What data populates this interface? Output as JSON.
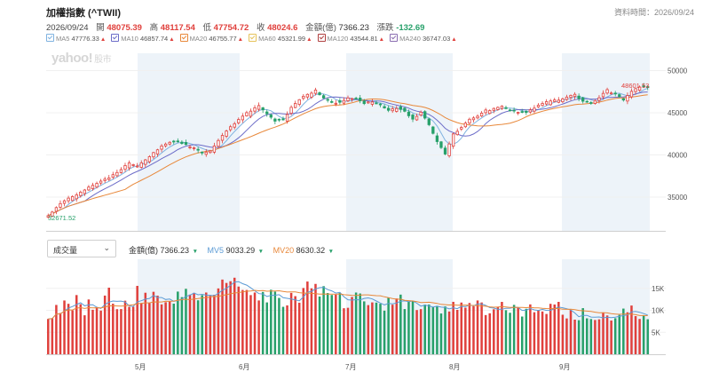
{
  "header": {
    "title": "加權指數 (^TWII)",
    "data_time": "資料時間：2026/09/24"
  },
  "quote": {
    "date": "2026/09/24",
    "open_label": "開",
    "open": "48075.39",
    "high_label": "高",
    "high": "48117.54",
    "low_label": "低",
    "low": "47754.72",
    "close_label": "收",
    "close": "48024.6",
    "amount_label": "金額(億)",
    "amount": "7366.23",
    "change_label": "漲跌",
    "change": "-132.69"
  },
  "ma_legend": [
    {
      "label": "MA5",
      "value": "47776.33",
      "color": "#7fb2e0",
      "dir": "up"
    },
    {
      "label": "MA10",
      "value": "46857.74",
      "color": "#6c6cc8",
      "dir": "up"
    },
    {
      "label": "MA20",
      "value": "46755.77",
      "color": "#e8883a",
      "dir": "up"
    },
    {
      "label": "MA60",
      "value": "45321.99",
      "color": "#e6c35a",
      "dir": "up"
    },
    {
      "label": "MA120",
      "value": "43544.81",
      "color": "#b04040",
      "dir": "up"
    },
    {
      "label": "MA240",
      "value": "36747.03",
      "color": "#8a6cb0",
      "dir": "up"
    }
  ],
  "watermark": {
    "brand": "yahoo!",
    "suffix": "股市"
  },
  "volume_panel": {
    "selector_label": "成交量",
    "amount_label": "金額(億)",
    "amount": "7366.23",
    "amount_dir": "down",
    "mv5_label": "MV5",
    "mv5": "9033.29",
    "mv5_dir": "down",
    "mv20_label": "MV20",
    "mv20": "8630.32",
    "mv20_dir": "down"
  },
  "colors": {
    "up": "#e0403c",
    "down": "#27a06a",
    "shade": "#edf3f9"
  },
  "chart_data": {
    "type": "candlestick",
    "x_ticks": [
      "5月",
      "6月",
      "7月",
      "8月",
      "9月"
    ],
    "y_ticks": [
      35000,
      40000,
      45000,
      50000
    ],
    "ylim": [
      31000,
      51000
    ],
    "max_label": "48601.53",
    "min_label": "32671.52",
    "close_path": [
      [
        0,
        32800
      ],
      [
        3,
        34200
      ],
      [
        6,
        35200
      ],
      [
        9,
        36000
      ],
      [
        12,
        36800
      ],
      [
        15,
        37300
      ],
      [
        18,
        38300
      ],
      [
        20,
        39200
      ],
      [
        22,
        38900
      ],
      [
        24,
        39600
      ],
      [
        26,
        40400
      ],
      [
        28,
        41100
      ],
      [
        30,
        41500
      ],
      [
        32,
        41600
      ],
      [
        34,
        41200
      ],
      [
        36,
        41000
      ],
      [
        38,
        40500
      ],
      [
        40,
        40600
      ],
      [
        42,
        41800
      ],
      [
        44,
        42900
      ],
      [
        46,
        43700
      ],
      [
        48,
        44600
      ],
      [
        50,
        45400
      ],
      [
        52,
        46000
      ],
      [
        54,
        45100
      ],
      [
        56,
        44200
      ],
      [
        58,
        44100
      ],
      [
        60,
        45600
      ],
      [
        62,
        46600
      ],
      [
        64,
        47200
      ],
      [
        66,
        47800
      ],
      [
        68,
        46900
      ],
      [
        70,
        46500
      ],
      [
        72,
        46200
      ],
      [
        74,
        46800
      ],
      [
        76,
        46700
      ],
      [
        78,
        46100
      ],
      [
        80,
        46400
      ],
      [
        82,
        46100
      ],
      [
        84,
        45400
      ],
      [
        86,
        45700
      ],
      [
        88,
        45100
      ],
      [
        90,
        44200
      ],
      [
        92,
        45000
      ],
      [
        94,
        43600
      ],
      [
        96,
        41800
      ],
      [
        98,
        40200
      ],
      [
        100,
        42700
      ],
      [
        102,
        43200
      ],
      [
        104,
        44200
      ],
      [
        106,
        44600
      ],
      [
        108,
        45300
      ],
      [
        110,
        45600
      ],
      [
        112,
        45900
      ],
      [
        114,
        45500
      ],
      [
        116,
        45200
      ],
      [
        118,
        45000
      ],
      [
        120,
        45600
      ],
      [
        122,
        46100
      ],
      [
        124,
        46600
      ],
      [
        126,
        46700
      ],
      [
        128,
        47000
      ],
      [
        130,
        47300
      ],
      [
        132,
        46400
      ],
      [
        134,
        46200
      ],
      [
        136,
        46800
      ],
      [
        138,
        47700
      ],
      [
        140,
        47400
      ],
      [
        142,
        46700
      ],
      [
        144,
        47700
      ],
      [
        146,
        48200
      ],
      [
        148,
        48000
      ]
    ],
    "volume": {
      "ylim": [
        0,
        20000
      ],
      "y_ticks": [
        "5K",
        "10K",
        "15K"
      ],
      "values": [
        [
          0,
          9500
        ],
        [
          3,
          10200
        ],
        [
          6,
          12300
        ],
        [
          9,
          11000
        ],
        [
          12,
          10600
        ],
        [
          15,
          13800
        ],
        [
          18,
          12000
        ],
        [
          20,
          11200
        ],
        [
          22,
          13600
        ],
        [
          24,
          12800
        ],
        [
          26,
          13500
        ],
        [
          28,
          11800
        ],
        [
          30,
          12200
        ],
        [
          32,
          13100
        ],
        [
          34,
          14600
        ],
        [
          36,
          13400
        ],
        [
          38,
          12200
        ],
        [
          40,
          13000
        ],
        [
          42,
          14000
        ],
        [
          44,
          16200
        ],
        [
          46,
          17500
        ],
        [
          48,
          15000
        ],
        [
          50,
          14600
        ],
        [
          52,
          13500
        ],
        [
          54,
          12900
        ],
        [
          56,
          13000
        ],
        [
          58,
          12000
        ],
        [
          60,
          12400
        ],
        [
          62,
          13200
        ],
        [
          64,
          15200
        ],
        [
          66,
          14500
        ],
        [
          68,
          13600
        ],
        [
          70,
          13200
        ],
        [
          72,
          12400
        ],
        [
          74,
          12200
        ],
        [
          76,
          12400
        ],
        [
          78,
          12000
        ],
        [
          80,
          11700
        ],
        [
          82,
          12000
        ],
        [
          84,
          11500
        ],
        [
          86,
          11500
        ],
        [
          88,
          12600
        ],
        [
          90,
          11400
        ],
        [
          92,
          11300
        ],
        [
          94,
          10400
        ],
        [
          96,
          11200
        ],
        [
          98,
          10700
        ],
        [
          100,
          11100
        ],
        [
          102,
          11200
        ],
        [
          104,
          11000
        ],
        [
          106,
          11100
        ],
        [
          108,
          10800
        ],
        [
          110,
          10400
        ],
        [
          112,
          10600
        ],
        [
          114,
          10600
        ],
        [
          116,
          10400
        ],
        [
          118,
          9800
        ],
        [
          120,
          10300
        ],
        [
          122,
          10200
        ],
        [
          124,
          11800
        ],
        [
          126,
          11200
        ],
        [
          128,
          10000
        ],
        [
          130,
          9800
        ],
        [
          132,
          9400
        ],
        [
          134,
          9000
        ],
        [
          136,
          8800
        ],
        [
          138,
          8900
        ],
        [
          140,
          8600
        ],
        [
          142,
          9400
        ],
        [
          144,
          10000
        ],
        [
          146,
          9100
        ],
        [
          148,
          8800
        ]
      ]
    }
  }
}
